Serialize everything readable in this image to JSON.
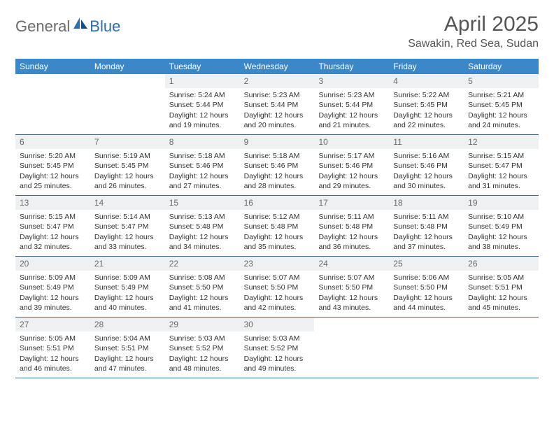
{
  "logo": {
    "text1": "General",
    "text2": "Blue"
  },
  "title": "April 2025",
  "location": "Sawakin, Red Sea, Sudan",
  "colors": {
    "header_bg": "#3c87c7",
    "header_text": "#ffffff",
    "daynum_bg": "#eef0f2",
    "daynum_text": "#6a6a6a",
    "border": "#3c6a93",
    "logo_gray": "#6a6a6a",
    "logo_blue": "#2b6fb0"
  },
  "weekdays": [
    "Sunday",
    "Monday",
    "Tuesday",
    "Wednesday",
    "Thursday",
    "Friday",
    "Saturday"
  ],
  "weeks": [
    [
      {
        "empty": true
      },
      {
        "empty": true
      },
      {
        "num": "1",
        "sunrise": "Sunrise: 5:24 AM",
        "sunset": "Sunset: 5:44 PM",
        "day1": "Daylight: 12 hours",
        "day2": "and 19 minutes."
      },
      {
        "num": "2",
        "sunrise": "Sunrise: 5:23 AM",
        "sunset": "Sunset: 5:44 PM",
        "day1": "Daylight: 12 hours",
        "day2": "and 20 minutes."
      },
      {
        "num": "3",
        "sunrise": "Sunrise: 5:23 AM",
        "sunset": "Sunset: 5:44 PM",
        "day1": "Daylight: 12 hours",
        "day2": "and 21 minutes."
      },
      {
        "num": "4",
        "sunrise": "Sunrise: 5:22 AM",
        "sunset": "Sunset: 5:45 PM",
        "day1": "Daylight: 12 hours",
        "day2": "and 22 minutes."
      },
      {
        "num": "5",
        "sunrise": "Sunrise: 5:21 AM",
        "sunset": "Sunset: 5:45 PM",
        "day1": "Daylight: 12 hours",
        "day2": "and 24 minutes."
      }
    ],
    [
      {
        "num": "6",
        "sunrise": "Sunrise: 5:20 AM",
        "sunset": "Sunset: 5:45 PM",
        "day1": "Daylight: 12 hours",
        "day2": "and 25 minutes."
      },
      {
        "num": "7",
        "sunrise": "Sunrise: 5:19 AM",
        "sunset": "Sunset: 5:45 PM",
        "day1": "Daylight: 12 hours",
        "day2": "and 26 minutes."
      },
      {
        "num": "8",
        "sunrise": "Sunrise: 5:18 AM",
        "sunset": "Sunset: 5:46 PM",
        "day1": "Daylight: 12 hours",
        "day2": "and 27 minutes."
      },
      {
        "num": "9",
        "sunrise": "Sunrise: 5:18 AM",
        "sunset": "Sunset: 5:46 PM",
        "day1": "Daylight: 12 hours",
        "day2": "and 28 minutes."
      },
      {
        "num": "10",
        "sunrise": "Sunrise: 5:17 AM",
        "sunset": "Sunset: 5:46 PM",
        "day1": "Daylight: 12 hours",
        "day2": "and 29 minutes."
      },
      {
        "num": "11",
        "sunrise": "Sunrise: 5:16 AM",
        "sunset": "Sunset: 5:46 PM",
        "day1": "Daylight: 12 hours",
        "day2": "and 30 minutes."
      },
      {
        "num": "12",
        "sunrise": "Sunrise: 5:15 AM",
        "sunset": "Sunset: 5:47 PM",
        "day1": "Daylight: 12 hours",
        "day2": "and 31 minutes."
      }
    ],
    [
      {
        "num": "13",
        "sunrise": "Sunrise: 5:15 AM",
        "sunset": "Sunset: 5:47 PM",
        "day1": "Daylight: 12 hours",
        "day2": "and 32 minutes."
      },
      {
        "num": "14",
        "sunrise": "Sunrise: 5:14 AM",
        "sunset": "Sunset: 5:47 PM",
        "day1": "Daylight: 12 hours",
        "day2": "and 33 minutes."
      },
      {
        "num": "15",
        "sunrise": "Sunrise: 5:13 AM",
        "sunset": "Sunset: 5:48 PM",
        "day1": "Daylight: 12 hours",
        "day2": "and 34 minutes."
      },
      {
        "num": "16",
        "sunrise": "Sunrise: 5:12 AM",
        "sunset": "Sunset: 5:48 PM",
        "day1": "Daylight: 12 hours",
        "day2": "and 35 minutes."
      },
      {
        "num": "17",
        "sunrise": "Sunrise: 5:11 AM",
        "sunset": "Sunset: 5:48 PM",
        "day1": "Daylight: 12 hours",
        "day2": "and 36 minutes."
      },
      {
        "num": "18",
        "sunrise": "Sunrise: 5:11 AM",
        "sunset": "Sunset: 5:48 PM",
        "day1": "Daylight: 12 hours",
        "day2": "and 37 minutes."
      },
      {
        "num": "19",
        "sunrise": "Sunrise: 5:10 AM",
        "sunset": "Sunset: 5:49 PM",
        "day1": "Daylight: 12 hours",
        "day2": "and 38 minutes."
      }
    ],
    [
      {
        "num": "20",
        "sunrise": "Sunrise: 5:09 AM",
        "sunset": "Sunset: 5:49 PM",
        "day1": "Daylight: 12 hours",
        "day2": "and 39 minutes."
      },
      {
        "num": "21",
        "sunrise": "Sunrise: 5:09 AM",
        "sunset": "Sunset: 5:49 PM",
        "day1": "Daylight: 12 hours",
        "day2": "and 40 minutes."
      },
      {
        "num": "22",
        "sunrise": "Sunrise: 5:08 AM",
        "sunset": "Sunset: 5:50 PM",
        "day1": "Daylight: 12 hours",
        "day2": "and 41 minutes."
      },
      {
        "num": "23",
        "sunrise": "Sunrise: 5:07 AM",
        "sunset": "Sunset: 5:50 PM",
        "day1": "Daylight: 12 hours",
        "day2": "and 42 minutes."
      },
      {
        "num": "24",
        "sunrise": "Sunrise: 5:07 AM",
        "sunset": "Sunset: 5:50 PM",
        "day1": "Daylight: 12 hours",
        "day2": "and 43 minutes."
      },
      {
        "num": "25",
        "sunrise": "Sunrise: 5:06 AM",
        "sunset": "Sunset: 5:50 PM",
        "day1": "Daylight: 12 hours",
        "day2": "and 44 minutes."
      },
      {
        "num": "26",
        "sunrise": "Sunrise: 5:05 AM",
        "sunset": "Sunset: 5:51 PM",
        "day1": "Daylight: 12 hours",
        "day2": "and 45 minutes."
      }
    ],
    [
      {
        "num": "27",
        "sunrise": "Sunrise: 5:05 AM",
        "sunset": "Sunset: 5:51 PM",
        "day1": "Daylight: 12 hours",
        "day2": "and 46 minutes."
      },
      {
        "num": "28",
        "sunrise": "Sunrise: 5:04 AM",
        "sunset": "Sunset: 5:51 PM",
        "day1": "Daylight: 12 hours",
        "day2": "and 47 minutes."
      },
      {
        "num": "29",
        "sunrise": "Sunrise: 5:03 AM",
        "sunset": "Sunset: 5:52 PM",
        "day1": "Daylight: 12 hours",
        "day2": "and 48 minutes."
      },
      {
        "num": "30",
        "sunrise": "Sunrise: 5:03 AM",
        "sunset": "Sunset: 5:52 PM",
        "day1": "Daylight: 12 hours",
        "day2": "and 49 minutes."
      },
      {
        "empty": true
      },
      {
        "empty": true
      },
      {
        "empty": true
      }
    ]
  ]
}
